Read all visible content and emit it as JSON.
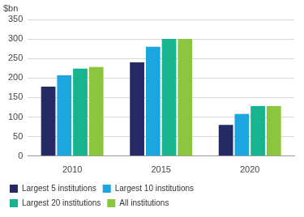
{
  "chart_data": {
    "type": "bar",
    "ylabel": "$bn",
    "categories": [
      "2010",
      "2015",
      "2020"
    ],
    "series": [
      {
        "name": "Largest 5 institutions",
        "color": "#252a64",
        "values": [
          178,
          240,
          80
        ]
      },
      {
        "name": "Largest 10 institutions",
        "color": "#1ba6e0",
        "values": [
          207,
          280,
          108
        ]
      },
      {
        "name": "Largest 20 institutions",
        "color": "#17b48f",
        "values": [
          224,
          300,
          128
        ]
      },
      {
        "name": "All institutions",
        "color": "#8cc63f",
        "values": [
          228,
          300,
          128
        ]
      }
    ],
    "ylim": [
      0,
      350
    ],
    "yticks": [
      0,
      50,
      100,
      150,
      200,
      250,
      300,
      350
    ],
    "grid": true,
    "legend": "bottom"
  }
}
